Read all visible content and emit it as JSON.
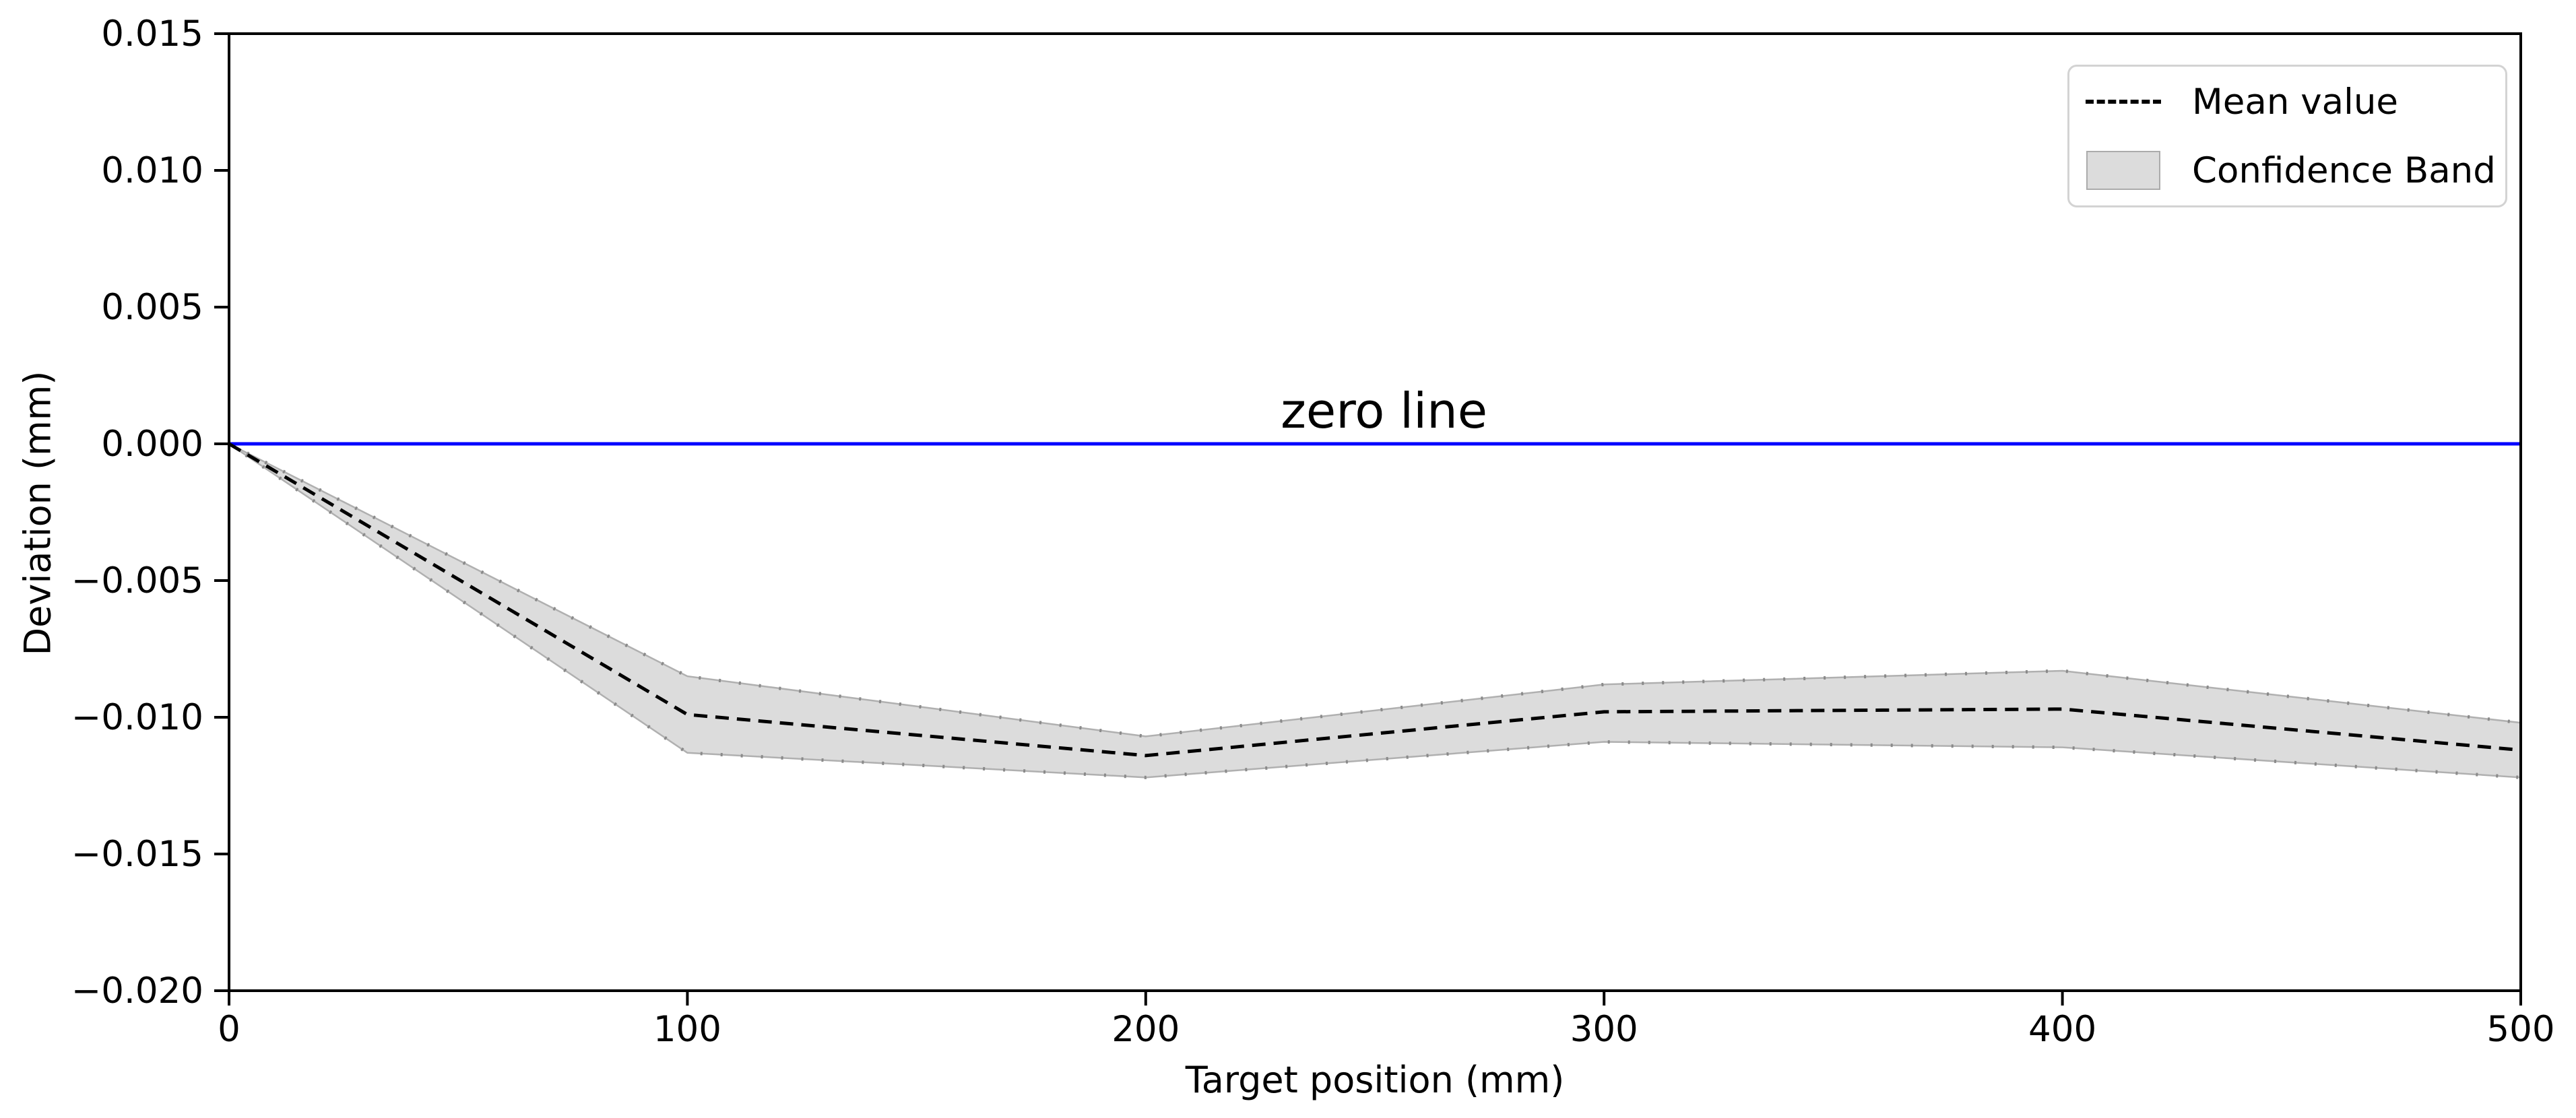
{
  "chart_data": {
    "type": "line",
    "title": "",
    "xlabel": "Target position (mm)",
    "ylabel": "Deviation (mm)",
    "xlim": [
      0,
      500
    ],
    "ylim": [
      -0.02,
      0.015
    ],
    "grid": false,
    "legend": {
      "position": "upper right",
      "entries": [
        "Mean value",
        "Confidence Band"
      ]
    },
    "x_ticks": [
      0,
      100,
      200,
      300,
      400,
      500
    ],
    "x_tick_labels": [
      "0",
      "100",
      "200",
      "300",
      "400",
      "500"
    ],
    "y_ticks": [
      0.015,
      0.01,
      0.005,
      0.0,
      -0.005,
      -0.01,
      -0.015,
      -0.02
    ],
    "y_tick_labels": [
      "0.015",
      "0.010",
      "0.005",
      "0.000",
      "−0.005",
      "−0.010",
      "−0.015",
      "−0.020"
    ],
    "x": [
      0,
      100,
      200,
      300,
      400,
      500
    ],
    "series": [
      {
        "name": "Mean value",
        "style": "dashed-line",
        "color": "#000000",
        "values": [
          0.0,
          -0.0099,
          -0.0114,
          -0.0098,
          -0.0097,
          -0.0112
        ]
      },
      {
        "name": "Confidence Band",
        "style": "band",
        "fill_color": "#dcdcdc",
        "edge_color": "#b0b0b0",
        "upper": [
          0.0,
          -0.0085,
          -0.0107,
          -0.0088,
          -0.0083,
          -0.0102
        ],
        "lower": [
          0.0,
          -0.0113,
          -0.0122,
          -0.0109,
          -0.0111,
          -0.0122
        ]
      }
    ],
    "zero_line": {
      "value": 0.0,
      "color": "#0000ff"
    },
    "annotation": {
      "text": "zero line",
      "x": 252,
      "y": 0.0
    }
  }
}
